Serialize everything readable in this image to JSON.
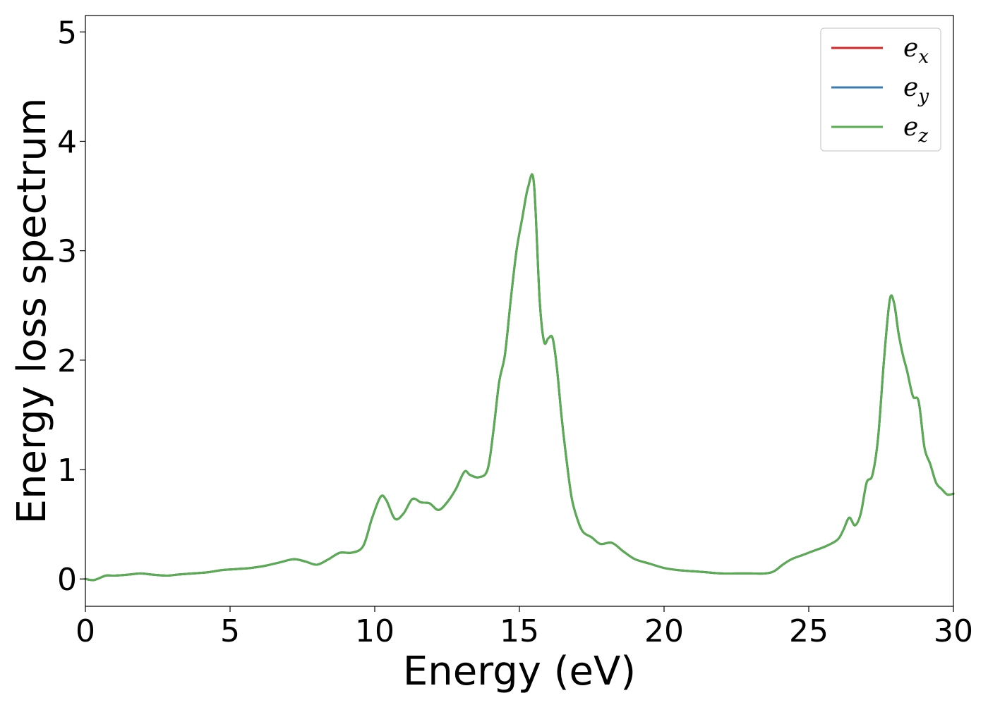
{
  "chart_data": {
    "type": "line",
    "xlabel": "Energy (eV)",
    "ylabel": "Energy loss spectrum",
    "xlim": [
      0,
      30
    ],
    "ylim": [
      -0.25,
      5.15
    ],
    "xticks": [
      0,
      5,
      10,
      15,
      20,
      25,
      30
    ],
    "yticks": [
      0,
      1,
      2,
      3,
      4,
      5
    ],
    "grid": false,
    "legend_position": "top-right",
    "series": [
      {
        "name": "e",
        "subscript": "x",
        "color": "#d62728",
        "x": [
          0,
          0.3,
          0.7,
          1.0,
          1.5,
          1.9,
          2.3,
          2.8,
          3.2,
          3.7,
          4.2,
          4.7,
          5.2,
          5.7,
          6.2,
          6.7,
          7.2,
          7.6,
          8.0,
          8.4,
          8.8,
          9.2,
          9.6,
          9.9,
          10.2,
          10.4,
          10.7,
          11.0,
          11.3,
          11.6,
          11.9,
          12.2,
          12.5,
          12.8,
          13.1,
          13.3,
          13.6,
          13.9,
          14.1,
          14.3,
          14.5,
          14.7,
          14.9,
          15.1,
          15.3,
          15.5,
          15.7,
          15.85,
          16.0,
          16.15,
          16.3,
          16.45,
          16.6,
          16.8,
          17.0,
          17.2,
          17.5,
          17.8,
          18.2,
          18.6,
          19.0,
          19.5,
          20.0,
          20.5,
          21.0,
          21.5,
          22.0,
          22.5,
          23.0,
          23.5,
          23.8,
          24.1,
          24.4,
          24.8,
          25.2,
          25.6,
          26.0,
          26.2,
          26.4,
          26.6,
          26.8,
          27.0,
          27.2,
          27.4,
          27.6,
          27.8,
          27.95,
          28.1,
          28.25,
          28.4,
          28.6,
          28.8,
          29.0,
          29.2,
          29.4,
          29.6,
          29.8,
          30.0
        ],
        "y": [
          0.0,
          -0.01,
          0.03,
          0.03,
          0.04,
          0.05,
          0.04,
          0.03,
          0.04,
          0.05,
          0.06,
          0.08,
          0.09,
          0.1,
          0.12,
          0.15,
          0.18,
          0.16,
          0.13,
          0.18,
          0.24,
          0.24,
          0.3,
          0.55,
          0.75,
          0.72,
          0.55,
          0.6,
          0.73,
          0.7,
          0.69,
          0.63,
          0.7,
          0.82,
          0.98,
          0.95,
          0.93,
          1.0,
          1.35,
          1.8,
          2.05,
          2.55,
          3.0,
          3.3,
          3.58,
          3.62,
          2.55,
          2.17,
          2.2,
          2.2,
          1.92,
          1.5,
          1.15,
          0.75,
          0.55,
          0.43,
          0.38,
          0.32,
          0.33,
          0.25,
          0.18,
          0.14,
          0.1,
          0.08,
          0.07,
          0.06,
          0.05,
          0.05,
          0.05,
          0.05,
          0.07,
          0.13,
          0.18,
          0.22,
          0.26,
          0.3,
          0.36,
          0.45,
          0.56,
          0.49,
          0.6,
          0.88,
          0.95,
          1.3,
          2.0,
          2.55,
          2.52,
          2.25,
          2.05,
          1.9,
          1.67,
          1.62,
          1.2,
          1.05,
          0.88,
          0.82,
          0.77,
          0.78
        ]
      },
      {
        "name": "e",
        "subscript": "y",
        "color": "#3a7cb2",
        "x": [
          0,
          0.3,
          0.7,
          1.0,
          1.5,
          1.9,
          2.3,
          2.8,
          3.2,
          3.7,
          4.2,
          4.7,
          5.2,
          5.7,
          6.2,
          6.7,
          7.2,
          7.6,
          8.0,
          8.4,
          8.8,
          9.2,
          9.6,
          9.9,
          10.2,
          10.4,
          10.7,
          11.0,
          11.3,
          11.6,
          11.9,
          12.2,
          12.5,
          12.8,
          13.1,
          13.3,
          13.6,
          13.9,
          14.1,
          14.3,
          14.5,
          14.7,
          14.9,
          15.1,
          15.3,
          15.5,
          15.7,
          15.85,
          16.0,
          16.15,
          16.3,
          16.45,
          16.6,
          16.8,
          17.0,
          17.2,
          17.5,
          17.8,
          18.2,
          18.6,
          19.0,
          19.5,
          20.0,
          20.5,
          21.0,
          21.5,
          22.0,
          22.5,
          23.0,
          23.5,
          23.8,
          24.1,
          24.4,
          24.8,
          25.2,
          25.6,
          26.0,
          26.2,
          26.4,
          26.6,
          26.8,
          27.0,
          27.2,
          27.4,
          27.6,
          27.8,
          27.95,
          28.1,
          28.25,
          28.4,
          28.6,
          28.8,
          29.0,
          29.2,
          29.4,
          29.6,
          29.8,
          30.0
        ],
        "y": [
          0.0,
          -0.01,
          0.03,
          0.03,
          0.04,
          0.05,
          0.04,
          0.03,
          0.04,
          0.05,
          0.06,
          0.08,
          0.09,
          0.1,
          0.12,
          0.15,
          0.18,
          0.16,
          0.13,
          0.18,
          0.24,
          0.24,
          0.3,
          0.55,
          0.75,
          0.72,
          0.55,
          0.6,
          0.73,
          0.7,
          0.69,
          0.63,
          0.7,
          0.82,
          0.98,
          0.95,
          0.93,
          1.0,
          1.35,
          1.8,
          2.05,
          2.55,
          3.0,
          3.3,
          3.58,
          3.62,
          2.55,
          2.17,
          2.2,
          2.2,
          1.92,
          1.5,
          1.15,
          0.75,
          0.55,
          0.43,
          0.38,
          0.32,
          0.33,
          0.25,
          0.18,
          0.14,
          0.1,
          0.08,
          0.07,
          0.06,
          0.05,
          0.05,
          0.05,
          0.05,
          0.07,
          0.13,
          0.18,
          0.22,
          0.26,
          0.3,
          0.36,
          0.45,
          0.56,
          0.49,
          0.6,
          0.88,
          0.95,
          1.3,
          2.0,
          2.55,
          2.52,
          2.25,
          2.05,
          1.9,
          1.67,
          1.62,
          1.2,
          1.05,
          0.88,
          0.82,
          0.77,
          0.78
        ]
      },
      {
        "name": "e",
        "subscript": "z",
        "color": "#57ad4f",
        "x": [
          0,
          0.3,
          0.7,
          1.0,
          1.5,
          1.9,
          2.3,
          2.8,
          3.2,
          3.7,
          4.2,
          4.7,
          5.2,
          5.7,
          6.2,
          6.7,
          7.2,
          7.6,
          8.0,
          8.4,
          8.8,
          9.2,
          9.6,
          9.9,
          10.2,
          10.4,
          10.7,
          11.0,
          11.3,
          11.6,
          11.9,
          12.2,
          12.5,
          12.8,
          13.1,
          13.3,
          13.6,
          13.9,
          14.1,
          14.3,
          14.5,
          14.7,
          14.9,
          15.1,
          15.3,
          15.5,
          15.7,
          15.85,
          16.0,
          16.15,
          16.3,
          16.45,
          16.6,
          16.8,
          17.0,
          17.2,
          17.5,
          17.8,
          18.2,
          18.6,
          19.0,
          19.5,
          20.0,
          20.5,
          21.0,
          21.5,
          22.0,
          22.5,
          23.0,
          23.5,
          23.8,
          24.1,
          24.4,
          24.8,
          25.2,
          25.6,
          26.0,
          26.2,
          26.4,
          26.6,
          26.8,
          27.0,
          27.2,
          27.4,
          27.6,
          27.8,
          27.95,
          28.1,
          28.25,
          28.4,
          28.6,
          28.8,
          29.0,
          29.2,
          29.4,
          29.6,
          29.8,
          30.0
        ],
        "y": [
          0.0,
          -0.01,
          0.03,
          0.03,
          0.04,
          0.05,
          0.04,
          0.03,
          0.04,
          0.05,
          0.06,
          0.08,
          0.09,
          0.1,
          0.12,
          0.15,
          0.18,
          0.16,
          0.13,
          0.18,
          0.24,
          0.24,
          0.3,
          0.55,
          0.75,
          0.72,
          0.55,
          0.6,
          0.73,
          0.7,
          0.69,
          0.63,
          0.7,
          0.82,
          0.98,
          0.95,
          0.93,
          1.0,
          1.35,
          1.8,
          2.05,
          2.55,
          3.0,
          3.3,
          3.58,
          3.62,
          2.55,
          2.17,
          2.2,
          2.2,
          1.92,
          1.5,
          1.15,
          0.75,
          0.55,
          0.43,
          0.38,
          0.32,
          0.33,
          0.25,
          0.18,
          0.14,
          0.1,
          0.08,
          0.07,
          0.06,
          0.05,
          0.05,
          0.05,
          0.05,
          0.07,
          0.13,
          0.18,
          0.22,
          0.26,
          0.3,
          0.36,
          0.45,
          0.56,
          0.49,
          0.6,
          0.88,
          0.95,
          1.3,
          2.0,
          2.55,
          2.52,
          2.25,
          2.05,
          1.9,
          1.67,
          1.62,
          1.2,
          1.05,
          0.88,
          0.82,
          0.77,
          0.78
        ]
      }
    ]
  }
}
